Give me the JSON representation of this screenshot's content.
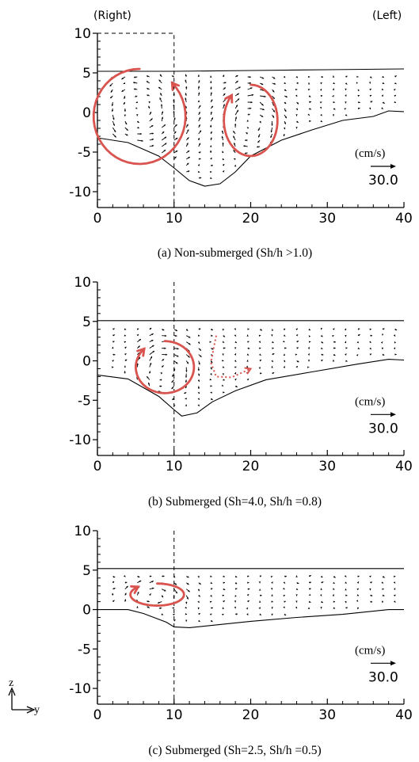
{
  "header": {
    "right_label": "(Right)",
    "left_label": "(Left)"
  },
  "compass": {
    "z_label": "z",
    "y_label": "y"
  },
  "colors": {
    "vortex": "#d9534f",
    "ink": "#000000"
  },
  "chart_data": [
    {
      "type": "vector-field",
      "xlim": [
        0,
        40
      ],
      "ylim": [
        -12,
        10
      ],
      "xticks": [
        0,
        10,
        20,
        30,
        40
      ],
      "yticks": [
        10,
        5,
        0,
        -5,
        -10
      ],
      "xtick_labels": [
        "0",
        "10",
        "20",
        "30",
        "40"
      ],
      "ytick_labels": [
        "10",
        "5",
        "0",
        "-5",
        "-10"
      ],
      "water_surface": [
        [
          0,
          5.2
        ],
        [
          10,
          5.2
        ],
        [
          20,
          5.3
        ],
        [
          30,
          5.4
        ],
        [
          40,
          5.5
        ]
      ],
      "bed_profile": [
        [
          0,
          -3.2
        ],
        [
          4,
          -3.8
        ],
        [
          8,
          -5.5
        ],
        [
          10,
          -7
        ],
        [
          12,
          -8.6
        ],
        [
          14,
          -9.3
        ],
        [
          16,
          -9
        ],
        [
          18,
          -7.5
        ],
        [
          20,
          -5.5
        ],
        [
          24,
          -3.5
        ],
        [
          28,
          -2.2
        ],
        [
          32,
          -1
        ],
        [
          36,
          -0.5
        ],
        [
          38,
          0.2
        ],
        [
          40,
          0.1
        ]
      ],
      "field_x": [
        2,
        40
      ],
      "field_z_top": 4.5,
      "dashed_box": {
        "x": 10,
        "z_top": 10
      },
      "vortices": [
        {
          "cx": 5.5,
          "cz": -0.5,
          "rx": 6,
          "rz": 6,
          "dir": "ccw"
        },
        {
          "cx": 20,
          "cz": -1,
          "rx": 3.5,
          "rz": 4.5,
          "dir": "cw"
        }
      ],
      "scale_vector": {
        "unit": "(cm/s)",
        "value": "30.0"
      },
      "caption": {
        "prefix": "(a) Non-submerged",
        "math": "(Sh/h >1.0)"
      }
    },
    {
      "type": "vector-field",
      "xlim": [
        0,
        40
      ],
      "ylim": [
        -12,
        10
      ],
      "xticks": [
        0,
        10,
        20,
        30,
        40
      ],
      "yticks": [
        10,
        5,
        0,
        -5,
        -10
      ],
      "xtick_labels": [
        "0",
        "10",
        "20",
        "30",
        "40"
      ],
      "ytick_labels": [
        "10",
        "5",
        "0",
        "-5",
        "-10"
      ],
      "water_surface": [
        [
          0,
          5.1
        ],
        [
          10,
          5.1
        ],
        [
          20,
          5.1
        ],
        [
          30,
          5.1
        ],
        [
          40,
          5.1
        ]
      ],
      "bed_profile": [
        [
          0,
          -1.8
        ],
        [
          4,
          -2.3
        ],
        [
          8,
          -4.5
        ],
        [
          10,
          -6.2
        ],
        [
          11,
          -7
        ],
        [
          13,
          -6.6
        ],
        [
          15,
          -5.2
        ],
        [
          18,
          -3.8
        ],
        [
          22,
          -2.4
        ],
        [
          28,
          -1.4
        ],
        [
          34,
          -0.4
        ],
        [
          38,
          0.2
        ],
        [
          40,
          0.1
        ]
      ],
      "field_x": [
        2,
        40
      ],
      "field_z_top": 4,
      "dashed_box": null,
      "vortices": [
        {
          "cx": 8.8,
          "cz": -0.8,
          "rx": 3.8,
          "rz": 3.3,
          "dir": "cw"
        }
      ],
      "dotted_arrow": [
        [
          15.5,
          3.2
        ],
        [
          14.8,
          -0.2
        ],
        [
          15.5,
          -2
        ],
        [
          17.5,
          -2.1
        ],
        [
          20,
          -1
        ]
      ],
      "scale_vector": {
        "unit": "(cm/s)",
        "value": "30.0"
      },
      "caption": {
        "prefix": "(b) Submerged",
        "math": "(Sh=4.0, Sh/h =0.8)"
      }
    },
    {
      "type": "vector-field",
      "xlim": [
        0,
        40
      ],
      "ylim": [
        -12,
        10
      ],
      "xticks": [
        0,
        10,
        20,
        30,
        40
      ],
      "yticks": [
        10,
        5,
        0,
        -5,
        -10
      ],
      "xtick_labels": [
        "0",
        "10",
        "20",
        "30",
        "40"
      ],
      "ytick_labels": [
        "10",
        "5",
        "0",
        "-5",
        "-10"
      ],
      "water_surface": [
        [
          0,
          5.2
        ],
        [
          10,
          5.2
        ],
        [
          20,
          5.2
        ],
        [
          30,
          5.2
        ],
        [
          40,
          5.2
        ]
      ],
      "bed_profile": [
        [
          0,
          0
        ],
        [
          4,
          0
        ],
        [
          6,
          -0.5
        ],
        [
          9,
          -1.6
        ],
        [
          10,
          -2.2
        ],
        [
          12,
          -2.3
        ],
        [
          15,
          -2
        ],
        [
          20,
          -1.5
        ],
        [
          26,
          -1
        ],
        [
          32,
          -0.6
        ],
        [
          38,
          0
        ],
        [
          40,
          0
        ]
      ],
      "field_x": [
        2,
        40
      ],
      "field_z_top": 4.2,
      "dashed_box": null,
      "vortices": [
        {
          "cx": 7.8,
          "cz": 1.9,
          "rx": 3.5,
          "rz": 1.4,
          "dir": "cw"
        }
      ],
      "scale_vector": {
        "unit": "(cm/s)",
        "value": "30.0"
      },
      "caption": {
        "prefix": "(c) Submerged",
        "math": "(Sh=2.5, Sh/h =0.5)"
      }
    }
  ]
}
